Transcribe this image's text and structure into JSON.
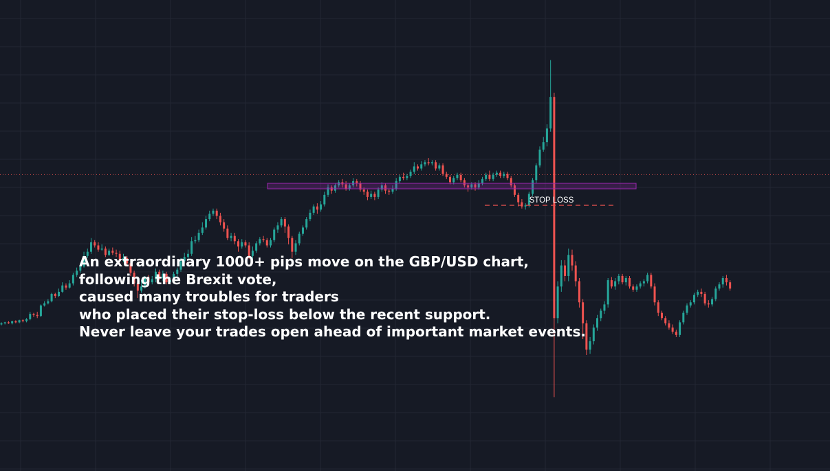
{
  "chart_data": {
    "type": "candlestick",
    "instrument": "GBP/USD",
    "colors": {
      "background": "#161a25",
      "grid": "#232734",
      "bullish": "#26a69a",
      "bearish": "#ef5350",
      "support_zone": "#9c27b0",
      "price_line": "#ef5350",
      "stop_loss": "#ef5350",
      "annotation_text": "#ffffff"
    },
    "grid": true,
    "support_zone_label": "",
    "stop_loss_label": "STOP LOSS",
    "candles": [
      [
        88,
        90,
        86,
        92
      ],
      [
        90,
        92,
        88,
        93
      ],
      [
        92,
        90,
        89,
        94
      ],
      [
        90,
        94,
        88,
        95
      ],
      [
        94,
        92,
        90,
        96
      ],
      [
        92,
        96,
        90,
        97
      ],
      [
        96,
        94,
        92,
        98
      ],
      [
        94,
        98,
        92,
        100
      ],
      [
        98,
        108,
        96,
        112
      ],
      [
        108,
        106,
        102,
        110
      ],
      [
        106,
        104,
        100,
        112
      ],
      [
        104,
        124,
        102,
        126
      ],
      [
        124,
        128,
        122,
        132
      ],
      [
        128,
        132,
        126,
        136
      ],
      [
        132,
        146,
        130,
        148
      ],
      [
        146,
        142,
        138,
        148
      ],
      [
        142,
        150,
        140,
        156
      ],
      [
        150,
        162,
        148,
        168
      ],
      [
        162,
        158,
        154,
        166
      ],
      [
        158,
        166,
        156,
        172
      ],
      [
        166,
        182,
        162,
        186
      ],
      [
        182,
        190,
        178,
        196
      ],
      [
        190,
        198,
        186,
        204
      ],
      [
        198,
        218,
        196,
        226
      ],
      [
        218,
        226,
        214,
        232
      ],
      [
        226,
        244,
        222,
        252
      ],
      [
        244,
        238,
        234,
        248
      ],
      [
        238,
        230,
        226,
        244
      ],
      [
        230,
        232,
        228,
        240
      ],
      [
        232,
        220,
        216,
        236
      ],
      [
        220,
        228,
        218,
        232
      ],
      [
        228,
        224,
        220,
        234
      ],
      [
        224,
        222,
        216,
        230
      ],
      [
        222,
        210,
        206,
        228
      ],
      [
        210,
        214,
        206,
        222
      ],
      [
        214,
        204,
        198,
        218
      ],
      [
        204,
        186,
        180,
        210
      ],
      [
        186,
        166,
        160,
        190
      ],
      [
        166,
        152,
        138,
        170
      ],
      [
        152,
        160,
        148,
        172
      ],
      [
        160,
        176,
        156,
        180
      ],
      [
        176,
        168,
        162,
        182
      ],
      [
        168,
        174,
        164,
        180
      ],
      [
        174,
        188,
        168,
        194
      ],
      [
        188,
        176,
        172,
        192
      ],
      [
        176,
        184,
        170,
        190
      ],
      [
        184,
        168,
        164,
        188
      ],
      [
        168,
        172,
        164,
        178
      ],
      [
        172,
        184,
        166,
        188
      ],
      [
        184,
        192,
        178,
        196
      ],
      [
        192,
        208,
        188,
        214
      ],
      [
        208,
        216,
        204,
        224
      ],
      [
        216,
        222,
        212,
        230
      ],
      [
        222,
        246,
        218,
        254
      ],
      [
        246,
        248,
        242,
        256
      ],
      [
        248,
        262,
        244,
        268
      ],
      [
        262,
        272,
        258,
        282
      ],
      [
        272,
        288,
        268,
        294
      ],
      [
        288,
        298,
        284,
        304
      ],
      [
        298,
        304,
        294,
        308
      ],
      [
        304,
        294,
        288,
        308
      ],
      [
        294,
        282,
        276,
        300
      ],
      [
        282,
        270,
        264,
        288
      ],
      [
        270,
        252,
        248,
        276
      ],
      [
        252,
        256,
        246,
        262
      ],
      [
        256,
        246,
        240,
        262
      ],
      [
        246,
        236,
        226,
        250
      ],
      [
        236,
        244,
        232,
        250
      ],
      [
        244,
        238,
        234,
        248
      ],
      [
        238,
        218,
        212,
        244
      ],
      [
        218,
        228,
        212,
        236
      ],
      [
        228,
        242,
        224,
        246
      ],
      [
        242,
        250,
        238,
        254
      ],
      [
        250,
        248,
        244,
        256
      ],
      [
        248,
        238,
        234,
        252
      ],
      [
        238,
        248,
        234,
        252
      ],
      [
        248,
        268,
        244,
        272
      ],
      [
        268,
        276,
        262,
        282
      ],
      [
        276,
        288,
        272,
        292
      ],
      [
        288,
        274,
        262,
        292
      ],
      [
        274,
        252,
        240,
        278
      ],
      [
        252,
        226,
        214,
        256
      ],
      [
        226,
        242,
        220,
        248
      ],
      [
        242,
        260,
        238,
        264
      ],
      [
        260,
        272,
        256,
        276
      ],
      [
        272,
        288,
        268,
        292
      ],
      [
        288,
        300,
        284,
        306
      ],
      [
        300,
        312,
        296,
        316
      ],
      [
        312,
        306,
        298,
        318
      ],
      [
        306,
        316,
        302,
        322
      ],
      [
        316,
        334,
        312,
        340
      ],
      [
        334,
        348,
        330,
        354
      ],
      [
        348,
        342,
        336,
        352
      ],
      [
        342,
        352,
        338,
        356
      ],
      [
        352,
        358,
        348,
        362
      ],
      [
        358,
        354,
        348,
        364
      ],
      [
        354,
        346,
        342,
        360
      ],
      [
        346,
        352,
        342,
        356
      ],
      [
        352,
        360,
        348,
        366
      ],
      [
        360,
        356,
        350,
        364
      ],
      [
        356,
        344,
        340,
        360
      ],
      [
        344,
        340,
        334,
        348
      ],
      [
        340,
        330,
        324,
        344
      ],
      [
        330,
        336,
        326,
        342
      ],
      [
        336,
        330,
        324,
        340
      ],
      [
        330,
        344,
        326,
        348
      ],
      [
        344,
        352,
        340,
        358
      ],
      [
        352,
        342,
        336,
        356
      ],
      [
        342,
        340,
        334,
        346
      ],
      [
        340,
        346,
        336,
        352
      ],
      [
        346,
        360,
        342,
        366
      ],
      [
        360,
        368,
        356,
        372
      ],
      [
        368,
        366,
        362,
        376
      ],
      [
        366,
        370,
        362,
        374
      ],
      [
        370,
        378,
        366,
        382
      ],
      [
        378,
        388,
        374,
        396
      ],
      [
        388,
        384,
        380,
        392
      ],
      [
        384,
        392,
        380,
        398
      ],
      [
        392,
        396,
        388,
        400
      ],
      [
        396,
        394,
        390,
        404
      ],
      [
        394,
        396,
        390,
        400
      ],
      [
        396,
        384,
        380,
        400
      ],
      [
        384,
        390,
        380,
        394
      ],
      [
        390,
        374,
        370,
        394
      ],
      [
        374,
        368,
        364,
        378
      ],
      [
        368,
        358,
        354,
        372
      ],
      [
        358,
        366,
        354,
        370
      ],
      [
        366,
        372,
        362,
        376
      ],
      [
        372,
        362,
        358,
        376
      ],
      [
        362,
        352,
        348,
        366
      ],
      [
        352,
        348,
        340,
        356
      ],
      [
        348,
        354,
        344,
        358
      ],
      [
        354,
        348,
        342,
        358
      ],
      [
        348,
        356,
        344,
        362
      ],
      [
        356,
        364,
        352,
        368
      ],
      [
        364,
        372,
        360,
        376
      ],
      [
        372,
        364,
        360,
        380
      ],
      [
        364,
        372,
        360,
        376
      ],
      [
        372,
        376,
        368,
        380
      ],
      [
        376,
        370,
        366,
        380
      ],
      [
        370,
        374,
        366,
        378
      ],
      [
        374,
        366,
        362,
        378
      ],
      [
        366,
        352,
        348,
        370
      ],
      [
        352,
        334,
        330,
        356
      ],
      [
        334,
        320,
        312,
        338
      ],
      [
        320,
        312,
        308,
        326
      ],
      [
        312,
        314,
        306,
        318
      ],
      [
        314,
        336,
        310,
        340
      ],
      [
        336,
        362,
        332,
        366
      ],
      [
        362,
        390,
        356,
        394
      ],
      [
        390,
        420,
        386,
        426
      ],
      [
        420,
        434,
        416,
        444
      ],
      [
        434,
        460,
        426,
        468
      ],
      [
        460,
        520,
        454,
        590
      ],
      [
        520,
        100,
        -50,
        528
      ],
      [
        100,
        160,
        90,
        170
      ],
      [
        160,
        200,
        150,
        210
      ],
      [
        200,
        180,
        170,
        210
      ],
      [
        180,
        220,
        170,
        232
      ],
      [
        220,
        200,
        190,
        230
      ],
      [
        200,
        170,
        160,
        208
      ],
      [
        170,
        130,
        120,
        176
      ],
      [
        130,
        90,
        60,
        136
      ],
      [
        90,
        40,
        30,
        96
      ],
      [
        40,
        56,
        32,
        64
      ],
      [
        56,
        82,
        50,
        88
      ],
      [
        82,
        100,
        76,
        106
      ],
      [
        100,
        114,
        94,
        118
      ],
      [
        114,
        126,
        108,
        132
      ],
      [
        126,
        172,
        120,
        176
      ],
      [
        172,
        160,
        156,
        178
      ],
      [
        160,
        170,
        154,
        176
      ],
      [
        170,
        180,
        164,
        184
      ],
      [
        180,
        168,
        164,
        184
      ],
      [
        168,
        176,
        162,
        180
      ],
      [
        176,
        160,
        156,
        180
      ],
      [
        160,
        154,
        150,
        164
      ],
      [
        154,
        160,
        150,
        164
      ],
      [
        160,
        166,
        156,
        170
      ],
      [
        166,
        170,
        160,
        174
      ],
      [
        170,
        182,
        166,
        186
      ],
      [
        182,
        160,
        156,
        186
      ],
      [
        160,
        130,
        124,
        166
      ],
      [
        130,
        110,
        104,
        134
      ],
      [
        110,
        100,
        96,
        114
      ],
      [
        100,
        90,
        86,
        104
      ],
      [
        90,
        82,
        78,
        96
      ],
      [
        82,
        74,
        70,
        88
      ],
      [
        74,
        68,
        64,
        78
      ],
      [
        68,
        92,
        64,
        96
      ],
      [
        92,
        110,
        88,
        114
      ],
      [
        110,
        124,
        106,
        128
      ],
      [
        124,
        130,
        120,
        134
      ],
      [
        130,
        144,
        126,
        148
      ],
      [
        144,
        150,
        140,
        154
      ],
      [
        150,
        146,
        140,
        156
      ],
      [
        146,
        128,
        124,
        150
      ],
      [
        128,
        126,
        120,
        134
      ],
      [
        126,
        136,
        122,
        140
      ],
      [
        136,
        156,
        132,
        160
      ],
      [
        156,
        164,
        152,
        168
      ],
      [
        164,
        176,
        158,
        180
      ],
      [
        176,
        168,
        162,
        182
      ],
      [
        168,
        156,
        152,
        172
      ]
    ],
    "annotation_lines": [
      "An extraordinary 1000+ pips move on the GBP/USD chart,",
      "following the Brexit vote,",
      "caused many troubles for traders",
      "who placed their stop-loss below the recent support.",
      "Never leave your trades open ahead of important market events."
    ]
  }
}
